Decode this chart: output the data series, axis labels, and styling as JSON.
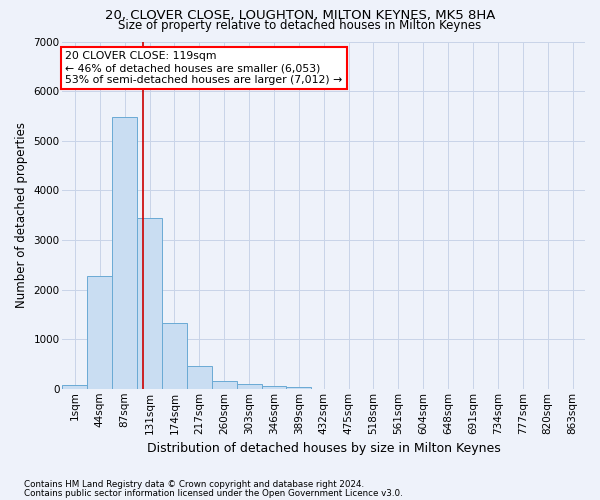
{
  "title1": "20, CLOVER CLOSE, LOUGHTON, MILTON KEYNES, MK5 8HA",
  "title2": "Size of property relative to detached houses in Milton Keynes",
  "xlabel": "Distribution of detached houses by size in Milton Keynes",
  "ylabel": "Number of detached properties",
  "footnote1": "Contains HM Land Registry data © Crown copyright and database right 2024.",
  "footnote2": "Contains public sector information licensed under the Open Government Licence v3.0.",
  "bar_labels": [
    "1sqm",
    "44sqm",
    "87sqm",
    "131sqm",
    "174sqm",
    "217sqm",
    "260sqm",
    "303sqm",
    "346sqm",
    "389sqm",
    "432sqm",
    "475sqm",
    "518sqm",
    "561sqm",
    "604sqm",
    "648sqm",
    "691sqm",
    "734sqm",
    "777sqm",
    "820sqm",
    "863sqm"
  ],
  "bar_values": [
    75,
    2280,
    5480,
    3450,
    1320,
    460,
    165,
    95,
    65,
    35,
    0,
    0,
    0,
    0,
    0,
    0,
    0,
    0,
    0,
    0,
    0
  ],
  "bar_color": "#c9ddf2",
  "bar_edge_color": "#6aaad4",
  "ylim": [
    0,
    7000
  ],
  "yticks": [
    0,
    1000,
    2000,
    3000,
    4000,
    5000,
    6000,
    7000
  ],
  "vline_x": 2.72,
  "vline_color": "#cc0000",
  "annotation_line1": "20 CLOVER CLOSE: 119sqm",
  "annotation_line2": "← 46% of detached houses are smaller (6,053)",
  "annotation_line3": "53% of semi-detached houses are larger (7,012) →",
  "annotation_box_color": "red",
  "bg_color": "#eef2fa",
  "grid_color": "#c8d4e8",
  "title1_fontsize": 9.5,
  "title2_fontsize": 8.5,
  "xlabel_fontsize": 9,
  "ylabel_fontsize": 8.5,
  "tick_fontsize": 7.5,
  "footnote_fontsize": 6.3
}
